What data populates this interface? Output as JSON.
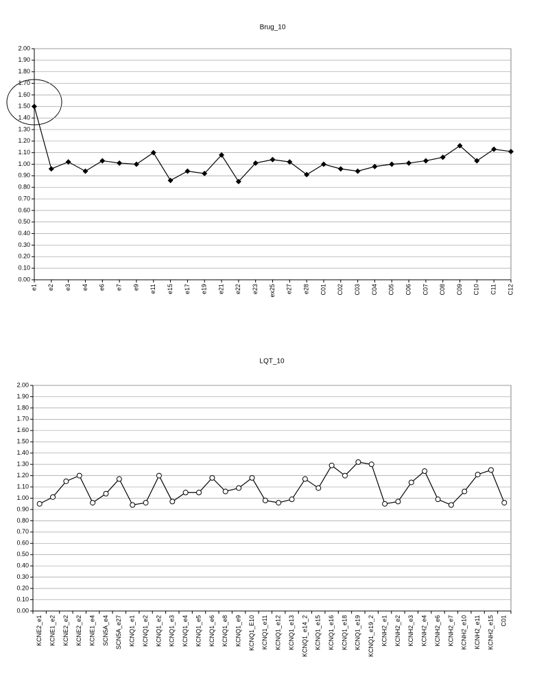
{
  "chart_data": [
    {
      "type": "line",
      "title": "Brug_10",
      "marker": "diamond",
      "color": "#000000",
      "categories": [
        "e1",
        "e2",
        "e3",
        "e4",
        "e6",
        "e7",
        "e9",
        "e11",
        "e15",
        "e17",
        "e19",
        "e21",
        "e22",
        "e23",
        "ex25",
        "e27",
        "e28",
        "C01",
        "C02",
        "C03",
        "C04",
        "C05",
        "C06",
        "C07",
        "C08",
        "C09",
        "C10",
        "C11",
        "C12"
      ],
      "values": [
        1.5,
        0.96,
        1.02,
        0.94,
        1.03,
        1.01,
        1.0,
        1.1,
        0.86,
        0.94,
        0.92,
        1.08,
        0.85,
        1.01,
        1.04,
        1.02,
        0.91,
        1.0,
        0.96,
        0.94,
        0.98,
        1.0,
        1.01,
        1.03,
        1.06,
        1.16,
        1.03,
        1.13,
        1.11
      ],
      "ylim": [
        0,
        2
      ],
      "grid": true,
      "yticks": [
        {
          "value": 0,
          "label": "0.00"
        },
        {
          "value": 0.1,
          "label": "0.10"
        },
        {
          "value": 0.2,
          "label": "0.20"
        },
        {
          "value": 0.3,
          "label": "0.30"
        },
        {
          "value": 0.4,
          "label": "0.40"
        },
        {
          "value": 0.5,
          "label": "0.50"
        },
        {
          "value": 0.6,
          "label": "0.60"
        },
        {
          "value": 0.7,
          "label": "0.70"
        },
        {
          "value": 0.8,
          "label": "0.80"
        },
        {
          "value": 0.9,
          "label": "0.90"
        },
        {
          "value": 1,
          "label": "1.00"
        },
        {
          "value": 1.1,
          "label": "1.10"
        },
        {
          "value": 1.2,
          "label": "1.20"
        },
        {
          "value": 1.3,
          "label": "1.30"
        },
        {
          "value": 1.4,
          "label": "1.40"
        },
        {
          "value": 1.5,
          "label": "1.50"
        },
        {
          "value": 1.6,
          "label": "1.60"
        },
        {
          "value": 1.7,
          "label": "1.70"
        },
        {
          "value": 1.8,
          "label": "1.80"
        },
        {
          "value": 1.9,
          "label": "1.90"
        },
        {
          "value": 2,
          "label": "2.00"
        }
      ]
    },
    {
      "type": "line",
      "title": "LQT_10",
      "marker": "circle",
      "color": "#000000",
      "categories": [
        "KCNE2_e1",
        "KCNE1_e2",
        "KCNE2_e2",
        "KCNE2_e2",
        "KCNE1_e4",
        "SCN5A_e4",
        "SCN5A_e27",
        "KCNQ1_e1",
        "KCNQ1_e2",
        "KCNQ1_e2",
        "KCNQ1_e3",
        "KCNQ1_e4",
        "KCNQ1_e5",
        "KCNQ1_e6",
        "KCNQ1_e8",
        "KCNQ1_e9",
        "KCNQ1_E10",
        "KCNQ1_e11",
        "KCNQ1_e12",
        "KCNQ1_e13",
        "KCNQ1_e14_2",
        "KCNQ1_e15",
        "KCNQ1_e16",
        "KCNQ1_e18",
        "KCNQ1_e19",
        "KCNQ1_e19_2",
        "KCNH2_e1",
        "KCNH2_e2",
        "KCNH2_e3",
        "KCNH2_e4",
        "KCNH2_e6",
        "KCNH2_e7",
        "KCNH2_e10",
        "KCNH2_e11",
        "KCNH2_e15",
        "C01"
      ],
      "values": [
        0.95,
        1.01,
        1.15,
        1.2,
        0.96,
        1.04,
        1.17,
        0.94,
        0.96,
        1.2,
        0.97,
        1.05,
        1.05,
        1.18,
        1.06,
        1.09,
        1.18,
        0.98,
        0.96,
        0.99,
        1.17,
        1.09,
        1.29,
        1.2,
        1.32,
        1.3,
        0.95,
        0.97,
        1.14,
        1.24,
        0.99,
        0.94,
        1.06,
        1.21,
        1.25,
        0.96
      ],
      "ylim": [
        0,
        2
      ],
      "grid": true,
      "yticks": [
        {
          "value": 0,
          "label": "0.00"
        },
        {
          "value": 0.1,
          "label": "0.10"
        },
        {
          "value": 0.2,
          "label": "0.20"
        },
        {
          "value": 0.3,
          "label": "0.30"
        },
        {
          "value": 0.4,
          "label": "0.40"
        },
        {
          "value": 0.5,
          "label": "0.50"
        },
        {
          "value": 0.6,
          "label": "0.60"
        },
        {
          "value": 0.7,
          "label": "0.70"
        },
        {
          "value": 0.8,
          "label": "0.80"
        },
        {
          "value": 0.9,
          "label": "0.90"
        },
        {
          "value": 1,
          "label": "1.00"
        },
        {
          "value": 1.1,
          "label": "1.10"
        },
        {
          "value": 1.2,
          "label": "1.20"
        },
        {
          "value": 1.3,
          "label": "1.30"
        },
        {
          "value": 1.4,
          "label": "1.40"
        },
        {
          "value": 1.5,
          "label": "1.50"
        },
        {
          "value": 1.6,
          "label": "1.60"
        },
        {
          "value": 1.7,
          "label": "1.70"
        },
        {
          "value": 1.8,
          "label": "1.80"
        },
        {
          "value": 1.9,
          "label": "1.90"
        },
        {
          "value": 2,
          "label": "2.00"
        }
      ]
    }
  ]
}
